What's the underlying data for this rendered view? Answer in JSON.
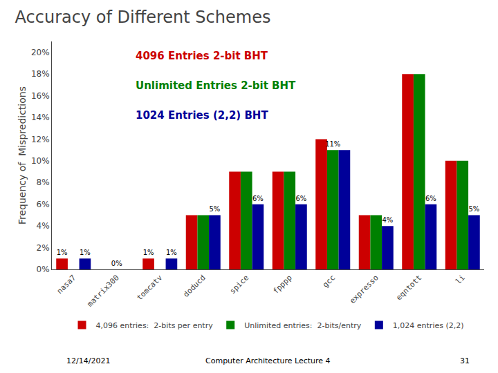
{
  "chart_data": {
    "type": "bar",
    "title": "Accuracy of Different Schemes",
    "ylabel": "Frequency of  Mispredictions",
    "categories": [
      "nasa7",
      "matrix300",
      "tomcatv",
      "doducd",
      "spice",
      "fpppp",
      "gcc",
      "expresso",
      "eqntott",
      "li"
    ],
    "series": [
      {
        "name": "4,096 entries:  2-bits per entry",
        "color": "#CC0000",
        "values": [
          1,
          0,
          1,
          5,
          9,
          9,
          12,
          5,
          18,
          10
        ],
        "value_labels": [
          "1%",
          null,
          "1%",
          null,
          null,
          null,
          null,
          null,
          null,
          null
        ]
      },
      {
        "name": "Unlimited entries:  2-bits/entry",
        "color": "#008000",
        "values": [
          0,
          0,
          0,
          5,
          9,
          9,
          11,
          5,
          18,
          10
        ],
        "value_labels": [
          null,
          "0%",
          null,
          null,
          null,
          null,
          "11%",
          null,
          null,
          null
        ]
      },
      {
        "name": "1,024 entries (2,2)",
        "color": "#000099",
        "values": [
          1,
          0,
          1,
          5,
          6,
          6,
          11,
          4,
          6,
          5
        ],
        "value_labels": [
          "1%",
          null,
          "1%",
          "5%",
          "6%",
          "6%",
          null,
          "4%",
          "6%",
          "5%"
        ]
      }
    ],
    "ylim": [
      0,
      21
    ],
    "yticks": [
      {
        "value": 0,
        "label": "0%"
      },
      {
        "value": 2,
        "label": "2%"
      },
      {
        "value": 4,
        "label": "4%"
      },
      {
        "value": 6,
        "label": "6%"
      },
      {
        "value": 8,
        "label": "8%"
      },
      {
        "value": 10,
        "label": "10%"
      },
      {
        "value": 12,
        "label": "12%"
      },
      {
        "value": 14,
        "label": "14%"
      },
      {
        "value": 16,
        "label": "16%"
      },
      {
        "value": 18,
        "label": "18%"
      },
      {
        "value": 20,
        "label": "20%"
      }
    ],
    "grid": false,
    "legend": "bottom",
    "annotations": [
      {
        "text": "4096 Entries 2-bit BHT",
        "color": "#CC0000"
      },
      {
        "text": "Unlimited Entries 2-bit BHT",
        "color": "#008000"
      },
      {
        "text": "1024 Entries (2,2) BHT",
        "color": "#000099"
      },
      {
        "text": "12/14/2021"
      },
      {
        "text": "Computer Architecture Lecture 4"
      },
      {
        "text": "31"
      }
    ]
  }
}
